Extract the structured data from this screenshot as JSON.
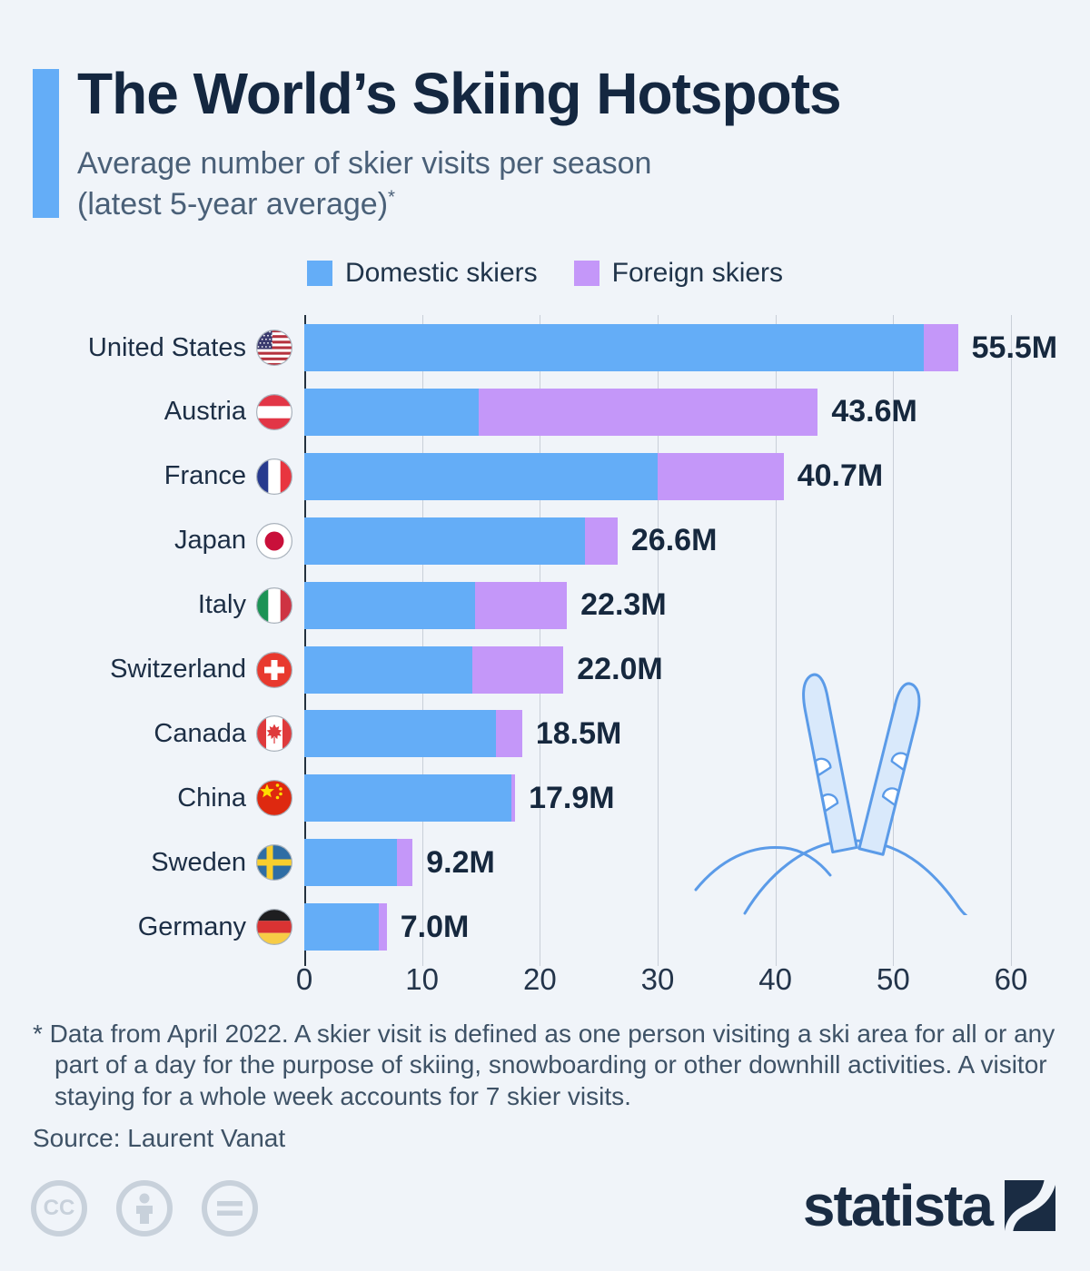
{
  "header": {
    "title": "The World’s Skiing Hotspots",
    "subtitle_line1": "Average number of skier visits per season",
    "subtitle_line2": "(latest 5-year average)",
    "footnote_marker": "*",
    "accent_color": "#64ADF7"
  },
  "legend": {
    "domestic": {
      "label": "Domestic skiers",
      "color": "#64ADF7"
    },
    "foreign": {
      "label": "Foreign skiers",
      "color": "#C497F9"
    }
  },
  "chart_data": {
    "type": "bar",
    "orientation": "horizontal",
    "stacked": true,
    "unit": "million skier visits",
    "xlim": [
      0,
      60
    ],
    "x_ticks": [
      0,
      10,
      20,
      30,
      40,
      50,
      60
    ],
    "grid": true,
    "categories": [
      "United States",
      "Austria",
      "France",
      "Japan",
      "Italy",
      "Switzerland",
      "Canada",
      "China",
      "Sweden",
      "Germany"
    ],
    "series": [
      {
        "name": "Domestic skiers",
        "color": "#64ADF7",
        "values": [
          52.6,
          14.8,
          30.0,
          23.8,
          14.5,
          14.3,
          16.3,
          17.6,
          7.9,
          6.3
        ]
      },
      {
        "name": "Foreign skiers",
        "color": "#C497F9",
        "values": [
          2.9,
          28.8,
          10.7,
          2.8,
          7.8,
          7.7,
          2.2,
          0.3,
          1.3,
          0.7
        ]
      }
    ],
    "totals": [
      55.5,
      43.6,
      40.7,
      26.6,
      22.3,
      22.0,
      18.5,
      17.9,
      9.2,
      7.0
    ],
    "rows": [
      {
        "country": "United States",
        "flag": "us",
        "domestic": 52.6,
        "foreign": 2.9,
        "total": 55.5,
        "label": "55.5M"
      },
      {
        "country": "Austria",
        "flag": "at",
        "domestic": 14.8,
        "foreign": 28.8,
        "total": 43.6,
        "label": "43.6M"
      },
      {
        "country": "France",
        "flag": "fr",
        "domestic": 30.0,
        "foreign": 10.7,
        "total": 40.7,
        "label": "40.7M"
      },
      {
        "country": "Japan",
        "flag": "jp",
        "domestic": 23.8,
        "foreign": 2.8,
        "total": 26.6,
        "label": "26.6M"
      },
      {
        "country": "Italy",
        "flag": "it",
        "domestic": 14.5,
        "foreign": 7.8,
        "total": 22.3,
        "label": "22.3M"
      },
      {
        "country": "Switzerland",
        "flag": "ch",
        "domestic": 14.3,
        "foreign": 7.7,
        "total": 22.0,
        "label": "22.0M"
      },
      {
        "country": "Canada",
        "flag": "ca",
        "domestic": 16.3,
        "foreign": 2.2,
        "total": 18.5,
        "label": "18.5M"
      },
      {
        "country": "China",
        "flag": "cn",
        "domestic": 17.6,
        "foreign": 0.3,
        "total": 17.9,
        "label": "17.9M"
      },
      {
        "country": "Sweden",
        "flag": "se",
        "domestic": 7.9,
        "foreign": 1.3,
        "total": 9.2,
        "label": "9.2M"
      },
      {
        "country": "Germany",
        "flag": "de",
        "domestic": 6.3,
        "foreign": 0.7,
        "total": 7.0,
        "label": "7.0M"
      }
    ]
  },
  "footnote": "* Data from April 2022. A skier visit is defined as one person visiting a ski area for all or any part of a day for the purpose of skiing, snowboarding or other downhill activities. A visitor staying for a whole week accounts for 7 skier visits.",
  "source": "Source: Laurent Vanat",
  "branding": {
    "logo_text": "statista"
  },
  "license_icons": [
    "cc",
    "by",
    "nd"
  ]
}
